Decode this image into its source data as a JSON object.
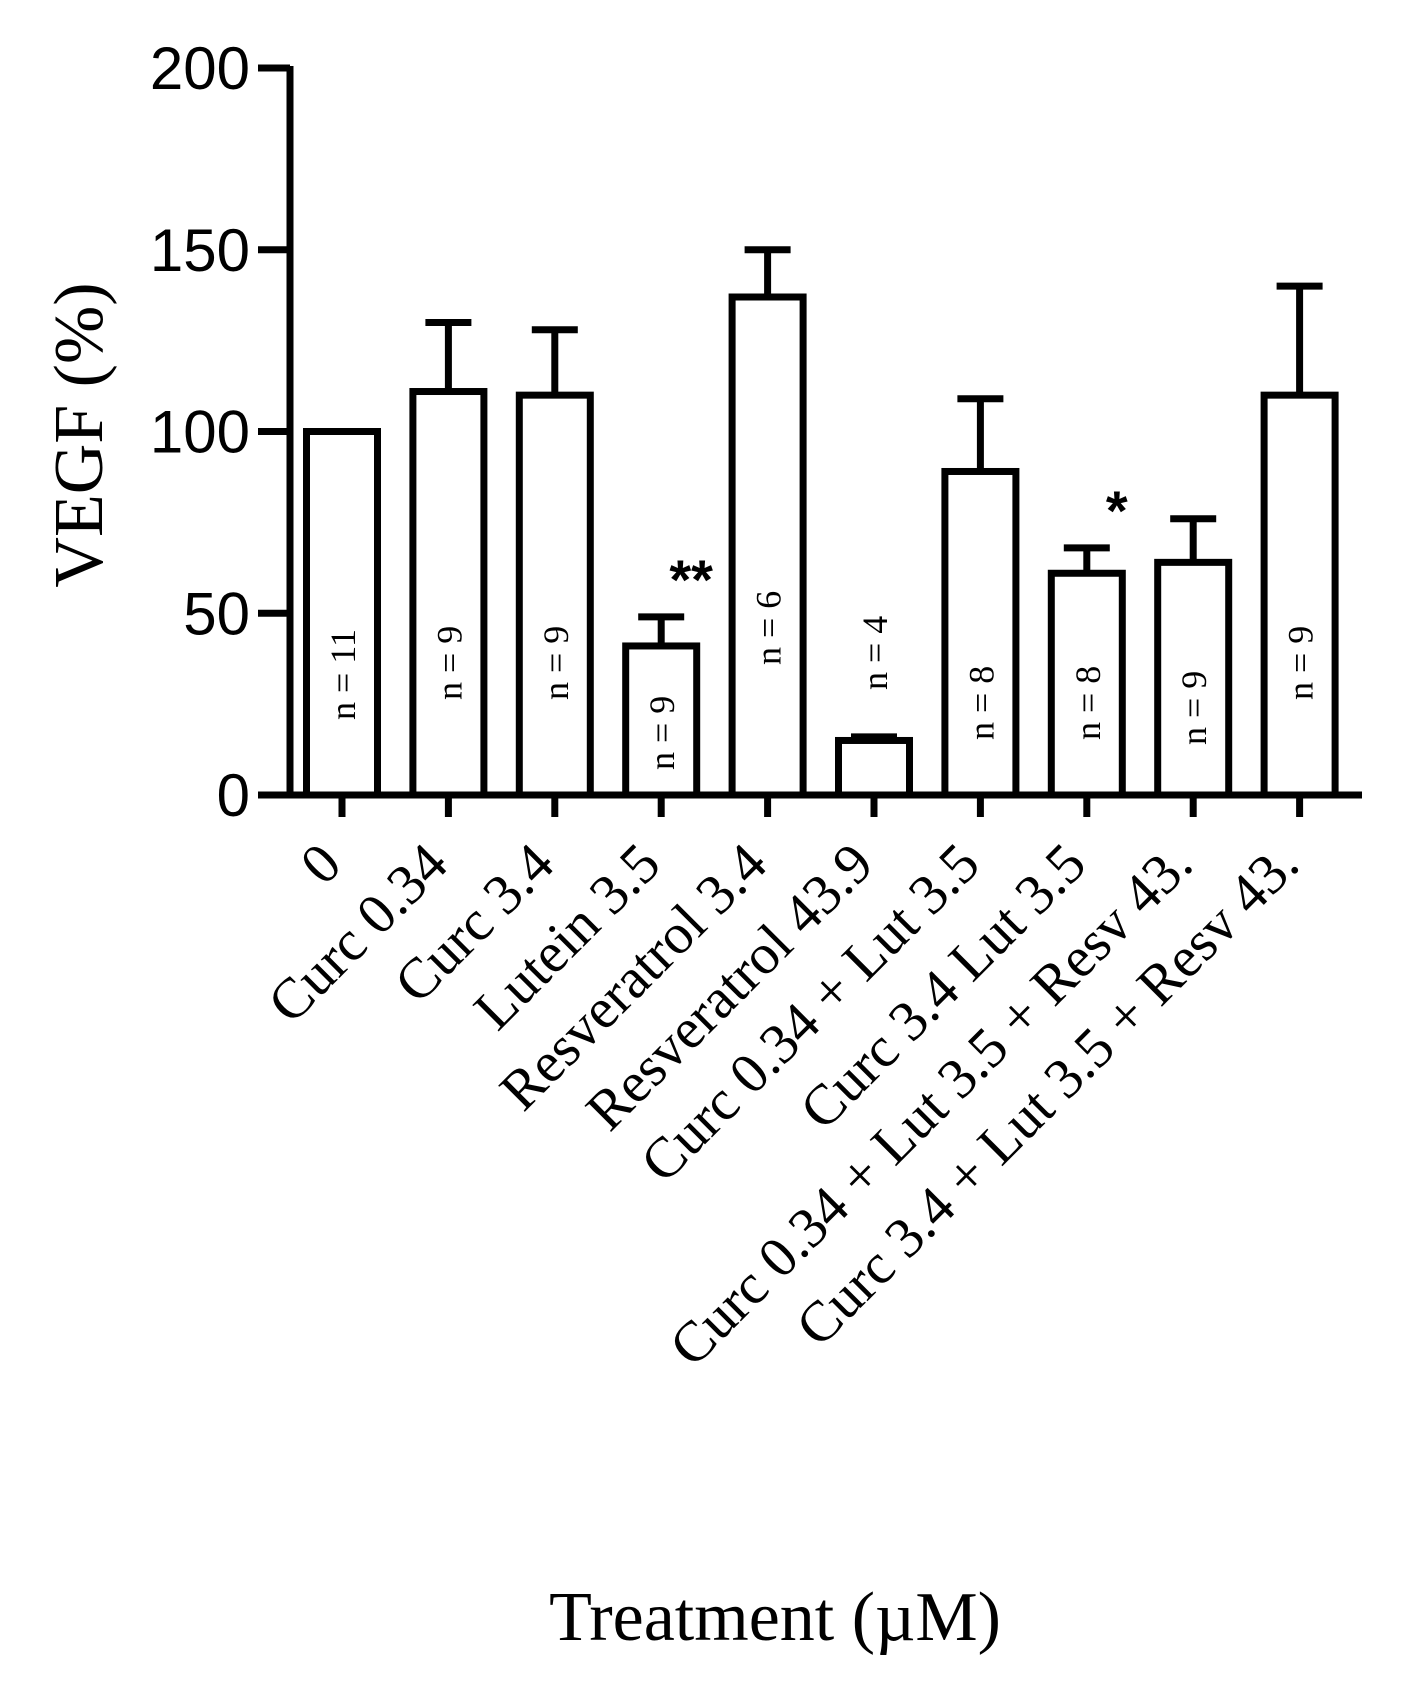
{
  "chart_data": {
    "type": "bar",
    "ylabel": "VEGF (%)",
    "xlabel": "Treatment (µM)",
    "ylim": [
      0,
      200
    ],
    "yticks": [
      "0",
      "50",
      "100",
      "150",
      "200"
    ],
    "grid": false,
    "legend": "none",
    "categories": [
      "0",
      "Curc 0.34",
      "Curc 3.4",
      "Lutein 3.5",
      "Resveratrol 3.4",
      "Resveratrol 43.9",
      "Curc 0.34 + Lut 3.5",
      "Curc 3.4 Lut 3.5",
      "Curc 0.34 + Lut 3.5 + Resv 43.",
      "Curc 3.4 + Lut 3.5 + Resv 43."
    ],
    "values": [
      100,
      111,
      110,
      41,
      137,
      15,
      89,
      61,
      64,
      110
    ],
    "errors": [
      0,
      19,
      18,
      8,
      13,
      1,
      20,
      7,
      12,
      30
    ],
    "n_labels": [
      "n = 11",
      "n = 9",
      "n = 9",
      "n = 9",
      "n = 6",
      "n = 4",
      "n = 8",
      "n = 8",
      "n = 9",
      "n = 9"
    ],
    "significance": [
      "",
      "",
      "",
      "**",
      "",
      "",
      "",
      "*",
      "",
      ""
    ],
    "colors": {
      "bar_fill": "#ffffff",
      "stroke": "#000000"
    }
  }
}
